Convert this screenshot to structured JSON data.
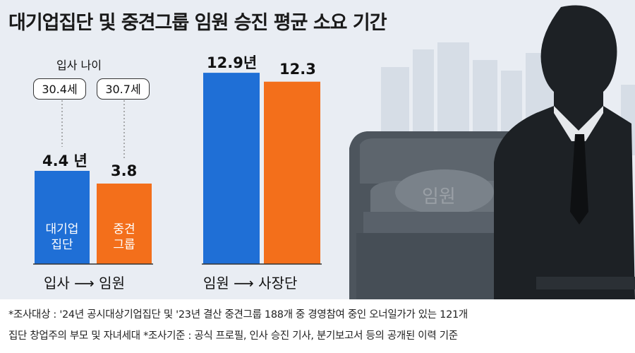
{
  "title": "대기업집단 및 중견그룹 임원 승진 평균 소요 기간",
  "colors": {
    "large_group": "#1f6fd6",
    "midsize_group": "#f36f1b",
    "background": "#e9edf3"
  },
  "chart_data": [
    {
      "type": "bar",
      "categories": [
        "대기업집단",
        "중견그룹"
      ],
      "values": [
        4.4,
        3.8
      ],
      "value_labels": [
        "4.4 년",
        "3.8"
      ],
      "bar_labels": [
        [
          "대기업",
          "집단"
        ],
        [
          "중견",
          "그룹"
        ]
      ],
      "xlabel": "입사 ⟶ 임원",
      "annotation_title": "입사 나이",
      "annotations": [
        "30.4세",
        "30.7세"
      ]
    },
    {
      "type": "bar",
      "categories": [
        "대기업집단",
        "중견그룹"
      ],
      "values": [
        12.9,
        12.3
      ],
      "value_labels": [
        "12.9년",
        "12.3"
      ],
      "xlabel": "임원 ⟶ 사장단"
    }
  ],
  "photo": {
    "seat_label": "임원"
  },
  "footer": {
    "line1": "*조사대상 : '24년 공시대상기업집단 및 '23년 결산 중견그룹 188개 중 경영참여 중인 오너일가가 있는 121개",
    "line2": "집단 창업주의 부모 및 자녀세대 *조사기준 : 공식 프로필, 인사 승진 기사, 분기보고서 등의 공개된 이력 기준"
  }
}
